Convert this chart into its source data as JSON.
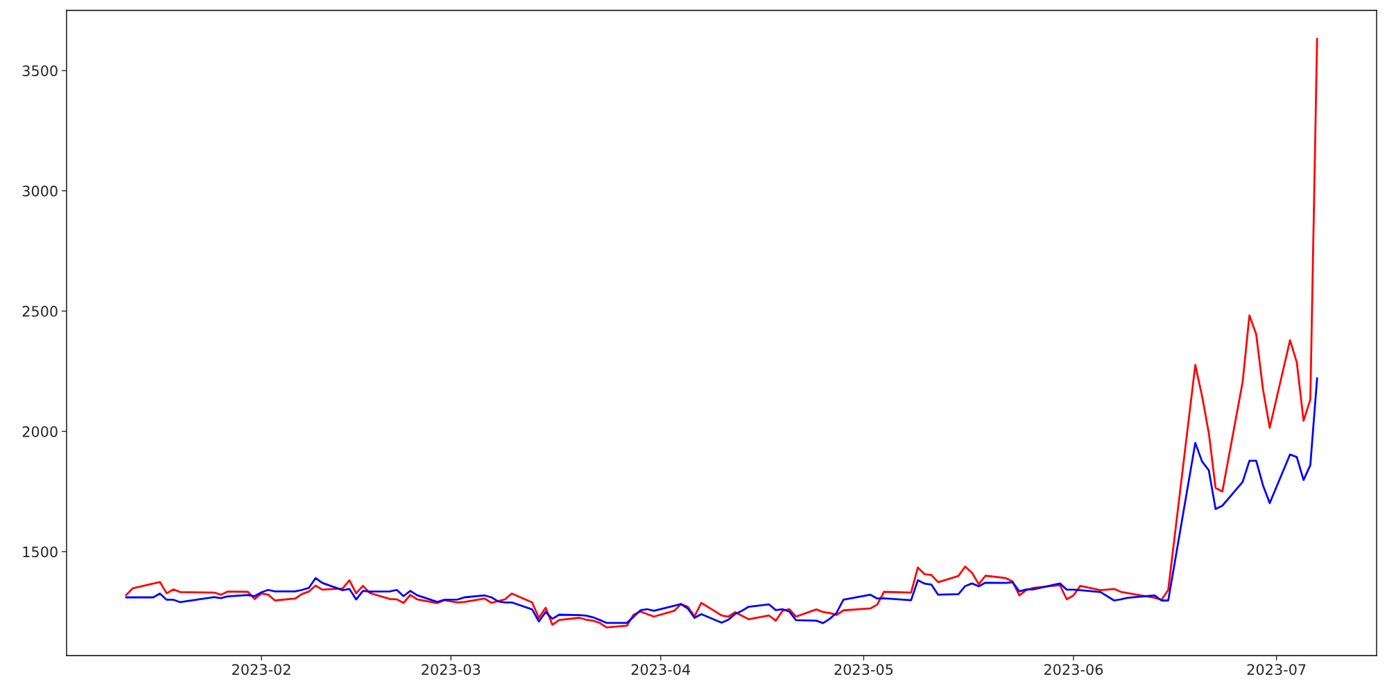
{
  "chart_data": {
    "type": "line",
    "xlim": [
      "2023-01-03T05:00",
      "2023-07-15T19:00"
    ],
    "xticks": [
      "2023-02",
      "2023-03",
      "2023-04",
      "2023-05",
      "2023-06",
      "2023-07"
    ],
    "ylim": [
      1068,
      3750
    ],
    "yticks": [
      1500,
      2000,
      2500,
      3000,
      3500
    ],
    "grid": false,
    "legend": false,
    "series": [
      {
        "color": "#ff0000",
        "x": [
          "2023-01-12",
          "2023-01-13",
          "2023-01-17",
          "2023-01-18",
          "2023-01-19",
          "2023-01-20",
          "2023-01-25",
          "2023-01-26",
          "2023-01-27",
          "2023-01-30",
          "2023-01-31",
          "2023-02-01",
          "2023-02-02",
          "2023-02-03",
          "2023-02-06",
          "2023-02-07",
          "2023-02-08",
          "2023-02-09",
          "2023-02-10",
          "2023-02-13",
          "2023-02-14",
          "2023-02-15",
          "2023-02-16",
          "2023-02-17",
          "2023-02-20",
          "2023-02-21",
          "2023-02-22",
          "2023-02-23",
          "2023-02-24",
          "2023-02-27",
          "2023-02-28",
          "2023-03-02",
          "2023-03-03",
          "2023-03-06",
          "2023-03-07",
          "2023-03-09",
          "2023-03-10",
          "2023-03-13",
          "2023-03-14",
          "2023-03-15",
          "2023-03-16",
          "2023-03-17",
          "2023-03-20",
          "2023-03-21",
          "2023-03-22",
          "2023-03-23",
          "2023-03-24",
          "2023-03-27",
          "2023-03-28",
          "2023-03-29",
          "2023-03-31",
          "2023-04-03",
          "2023-04-04",
          "2023-04-05",
          "2023-04-06",
          "2023-04-07",
          "2023-04-10",
          "2023-04-11",
          "2023-04-12",
          "2023-04-14",
          "2023-04-17",
          "2023-04-18",
          "2023-04-19",
          "2023-04-20",
          "2023-04-21",
          "2023-04-24",
          "2023-04-25",
          "2023-04-26",
          "2023-04-27",
          "2023-04-28",
          "2023-05-02",
          "2023-05-03",
          "2023-05-04",
          "2023-05-08",
          "2023-05-09",
          "2023-05-10",
          "2023-05-11",
          "2023-05-12",
          "2023-05-15",
          "2023-05-16",
          "2023-05-17",
          "2023-05-18",
          "2023-05-19",
          "2023-05-22",
          "2023-05-23",
          "2023-05-24",
          "2023-05-25",
          "2023-05-26",
          "2023-05-30",
          "2023-05-31",
          "2023-06-01",
          "2023-06-02",
          "2023-06-05",
          "2023-06-07",
          "2023-06-08",
          "2023-06-13",
          "2023-06-14",
          "2023-06-15",
          "2023-06-19",
          "2023-06-20",
          "2023-06-21",
          "2023-06-22",
          "2023-06-23",
          "2023-06-26",
          "2023-06-27",
          "2023-06-28",
          "2023-06-29",
          "2023-06-30",
          "2023-07-03",
          "2023-07-04",
          "2023-07-05",
          "2023-07-06",
          "2023-07-07"
        ],
        "values": [
          1319,
          1348,
          1374,
          1327,
          1343,
          1332,
          1330,
          1321,
          1334,
          1333,
          1303,
          1326,
          1321,
          1297,
          1305,
          1324,
          1334,
          1359,
          1342,
          1347,
          1381,
          1327,
          1358,
          1328,
          1303,
          1302,
          1287,
          1320,
          1302,
          1286,
          1298,
          1289,
          1291,
          1305,
          1287,
          1302,
          1326,
          1289,
          1225,
          1267,
          1196,
          1216,
          1225,
          1217,
          1213,
          1204,
          1185,
          1192,
          1238,
          1251,
          1230,
          1254,
          1282,
          1271,
          1231,
          1287,
          1235,
          1230,
          1248,
          1219,
          1235,
          1213,
          1254,
          1261,
          1230,
          1260,
          1249,
          1245,
          1237,
          1256,
          1264,
          1280,
          1333,
          1330,
          1434,
          1406,
          1403,
          1373,
          1399,
          1438,
          1412,
          1365,
          1400,
          1390,
          1376,
          1318,
          1340,
          1349,
          1361,
          1302,
          1318,
          1358,
          1340,
          1345,
          1333,
          1308,
          1300,
          1341,
          2276,
          2147,
          1993,
          1765,
          1750,
          2206,
          2482,
          2404,
          2176,
          2015,
          2379,
          2287,
          2044,
          2132,
          3632
        ]
      },
      {
        "color": "#0000ff",
        "x": [
          "2023-01-12",
          "2023-01-13",
          "2023-01-16",
          "2023-01-17",
          "2023-01-18",
          "2023-01-19",
          "2023-01-20",
          "2023-01-25",
          "2023-01-26",
          "2023-01-27",
          "2023-01-30",
          "2023-01-31",
          "2023-02-01",
          "2023-02-02",
          "2023-02-03",
          "2023-02-06",
          "2023-02-07",
          "2023-02-08",
          "2023-02-09",
          "2023-02-10",
          "2023-02-13",
          "2023-02-14",
          "2023-02-15",
          "2023-02-16",
          "2023-02-17",
          "2023-02-20",
          "2023-02-21",
          "2023-02-22",
          "2023-02-23",
          "2023-02-24",
          "2023-02-27",
          "2023-02-28",
          "2023-03-02",
          "2023-03-03",
          "2023-03-06",
          "2023-03-07",
          "2023-03-08",
          "2023-03-09",
          "2023-03-10",
          "2023-03-13",
          "2023-03-14",
          "2023-03-15",
          "2023-03-16",
          "2023-03-17",
          "2023-03-20",
          "2023-03-21",
          "2023-03-22",
          "2023-03-23",
          "2023-03-24",
          "2023-03-27",
          "2023-03-28",
          "2023-03-29",
          "2023-03-30",
          "2023-03-31",
          "2023-04-03",
          "2023-04-04",
          "2023-04-05",
          "2023-04-06",
          "2023-04-07",
          "2023-04-10",
          "2023-04-11",
          "2023-04-12",
          "2023-04-13",
          "2023-04-14",
          "2023-04-17",
          "2023-04-18",
          "2023-04-19",
          "2023-04-20",
          "2023-04-21",
          "2023-04-24",
          "2023-04-25",
          "2023-04-26",
          "2023-04-27",
          "2023-04-28",
          "2023-05-02",
          "2023-05-03",
          "2023-05-04",
          "2023-05-08",
          "2023-05-09",
          "2023-05-10",
          "2023-05-11",
          "2023-05-12",
          "2023-05-15",
          "2023-05-16",
          "2023-05-17",
          "2023-05-18",
          "2023-05-19",
          "2023-05-22",
          "2023-05-23",
          "2023-05-24",
          "2023-05-25",
          "2023-05-26",
          "2023-05-30",
          "2023-05-31",
          "2023-06-01",
          "2023-06-02",
          "2023-06-05",
          "2023-06-07",
          "2023-06-08",
          "2023-06-09",
          "2023-06-13",
          "2023-06-14",
          "2023-06-15",
          "2023-06-19",
          "2023-06-20",
          "2023-06-21",
          "2023-06-22",
          "2023-06-23",
          "2023-06-26",
          "2023-06-27",
          "2023-06-28",
          "2023-06-29",
          "2023-06-30",
          "2023-07-03",
          "2023-07-04",
          "2023-07-05",
          "2023-07-06",
          "2023-07-07"
        ],
        "values": [
          1310,
          1310,
          1310,
          1326,
          1300,
          1300,
          1290,
          1311,
          1307,
          1314,
          1320,
          1315,
          1331,
          1341,
          1335,
          1335,
          1341,
          1349,
          1390,
          1370,
          1340,
          1345,
          1301,
          1337,
          1334,
          1335,
          1341,
          1315,
          1337,
          1319,
          1291,
          1300,
          1301,
          1310,
          1318,
          1310,
          1293,
          1289,
          1289,
          1260,
          1210,
          1249,
          1221,
          1238,
          1236,
          1234,
          1227,
          1216,
          1204,
          1204,
          1229,
          1256,
          1261,
          1254,
          1275,
          1282,
          1264,
          1225,
          1240,
          1205,
          1217,
          1241,
          1254,
          1271,
          1281,
          1257,
          1261,
          1251,
          1215,
          1213,
          1203,
          1221,
          1246,
          1300,
          1321,
          1305,
          1306,
          1298,
          1381,
          1367,
          1363,
          1321,
          1323,
          1357,
          1368,
          1356,
          1371,
          1370,
          1373,
          1335,
          1343,
          1343,
          1368,
          1342,
          1342,
          1340,
          1332,
          1297,
          1302,
          1308,
          1318,
          1297,
          1297,
          1952,
          1875,
          1838,
          1677,
          1691,
          1790,
          1878,
          1878,
          1776,
          1702,
          1904,
          1893,
          1798,
          1860,
          2221
        ]
      }
    ]
  }
}
